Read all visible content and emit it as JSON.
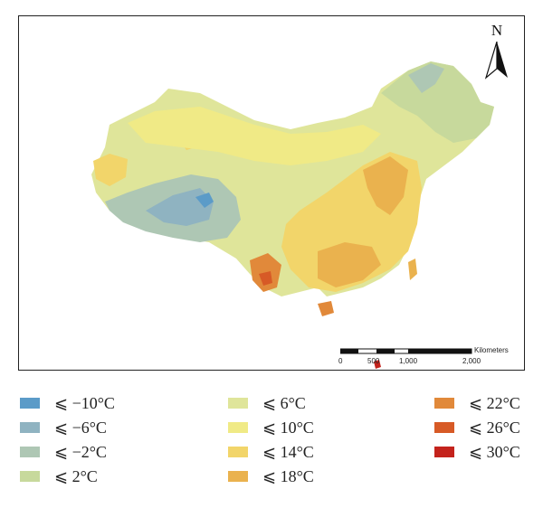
{
  "north_arrow": {
    "label": "N",
    "icon": "north-arrow-icon"
  },
  "scale_bar": {
    "title": "Kilometers",
    "ticks": [
      "0",
      "500",
      "1,000",
      "2,000"
    ]
  },
  "legend": {
    "items": [
      {
        "label": "⩽ −10°C",
        "color": "#5b9bc8"
      },
      {
        "label": "⩽ −6°C",
        "color": "#8fb3c1"
      },
      {
        "label": "⩽ −2°C",
        "color": "#aec7b4"
      },
      {
        "label": "⩽ 2°C",
        "color": "#c7d99c"
      },
      {
        "label": "⩽ 6°C",
        "color": "#dfe59a"
      },
      {
        "label": "⩽ 10°C",
        "color": "#f0ea86"
      },
      {
        "label": "⩽ 14°C",
        "color": "#f2d56a"
      },
      {
        "label": "⩽ 18°C",
        "color": "#eab24e"
      },
      {
        "label": "⩽ 22°C",
        "color": "#e1893a"
      },
      {
        "label": "⩽ 26°C",
        "color": "#d75a26"
      },
      {
        "label": "⩽ 30°C",
        "color": "#c4231c"
      }
    ]
  }
}
